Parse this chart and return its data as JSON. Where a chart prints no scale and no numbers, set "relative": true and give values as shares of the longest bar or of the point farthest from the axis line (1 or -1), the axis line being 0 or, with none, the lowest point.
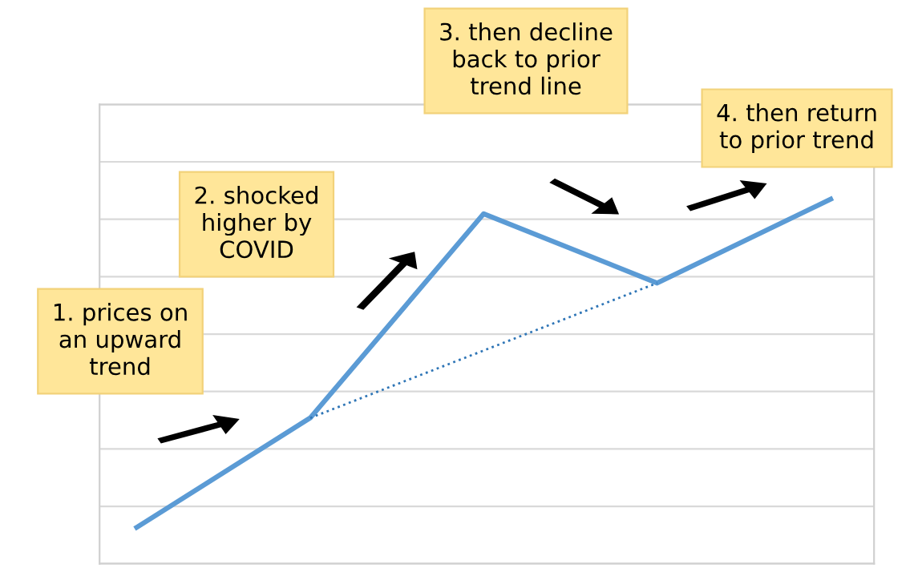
{
  "chart_data": {
    "type": "line",
    "relative": true,
    "categories": [
      null,
      null,
      null,
      null,
      null
    ],
    "series": [
      {
        "color": "#5b9bd5",
        "values": [
          0.1,
          0.4,
          0.96,
          0.77,
          1.0
        ]
      },
      {
        "color": "#2e75b6",
        "values": [
          null,
          0.4,
          null,
          0.77,
          null
        ],
        "line_style": "dotted"
      }
    ],
    "grid": "y",
    "tick_labels": false,
    "annotations": [
      "1. prices on\nan upward\ntrend",
      "2. shocked\nhigher by\nCOVID",
      "3. then decline\nback to prior\ntrend line",
      "4. then return\nto prior trend"
    ]
  }
}
